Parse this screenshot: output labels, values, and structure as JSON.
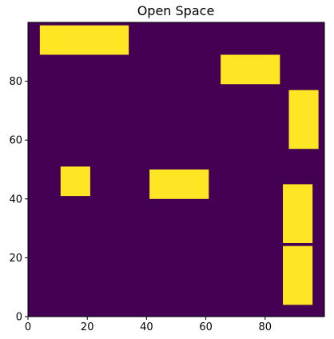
{
  "chart_data": {
    "type": "heatmap",
    "title": "Open Space",
    "xlabel": "",
    "ylabel": "",
    "xlim": [
      0,
      100
    ],
    "ylim": [
      0,
      100
    ],
    "x_ticks": [
      0,
      20,
      40,
      60,
      80
    ],
    "y_ticks": [
      0,
      20,
      40,
      60,
      80
    ],
    "grid": false,
    "colors": {
      "background": "#440154",
      "obstacle": "#fde725"
    },
    "obstacles": [
      {
        "x": [
          4,
          34
        ],
        "y": [
          89,
          99
        ]
      },
      {
        "x": [
          65,
          85
        ],
        "y": [
          79,
          89
        ]
      },
      {
        "x": [
          88,
          98
        ],
        "y": [
          57,
          77
        ]
      },
      {
        "x": [
          11,
          21
        ],
        "y": [
          41,
          51
        ]
      },
      {
        "x": [
          41,
          61
        ],
        "y": [
          40,
          50
        ]
      },
      {
        "x": [
          86,
          96
        ],
        "y": [
          25,
          45
        ]
      },
      {
        "x": [
          86,
          96
        ],
        "y": [
          4,
          24
        ]
      }
    ]
  }
}
